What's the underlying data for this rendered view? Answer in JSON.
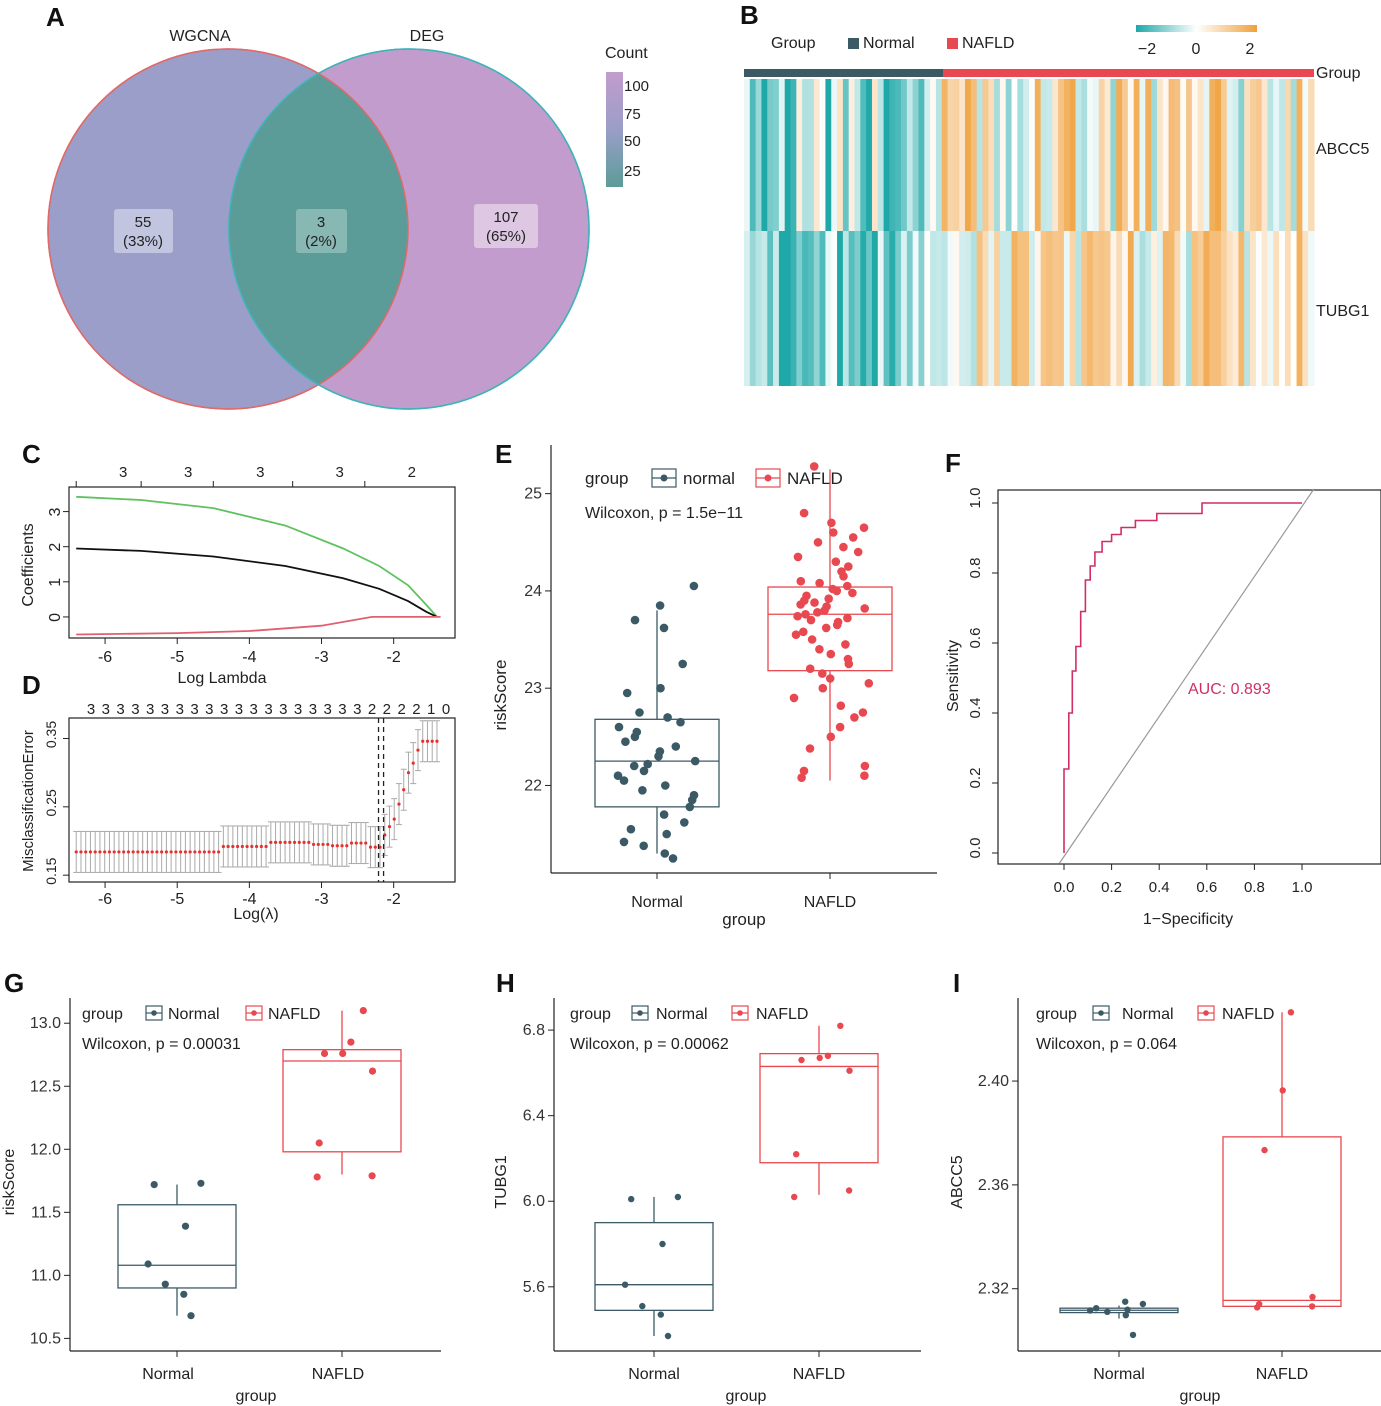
{
  "figure": {
    "panel_letters": [
      "A",
      "B",
      "C",
      "D",
      "E",
      "F",
      "G",
      "H",
      "I"
    ],
    "colors": {
      "normal": "#3b5a66",
      "nafld": "#e8484f",
      "heat_low": "#1fa8a8",
      "heat_mid": "#ffffff",
      "heat_high": "#f0a03c",
      "venn_left": "#9a9ec8",
      "venn_right": "#c29ccc",
      "venn_overlap": "#5c9c98"
    }
  },
  "chart_data": [
    {
      "panel": "A",
      "type": "venn",
      "sets": [
        "WGCNA",
        "DEG"
      ],
      "regions": [
        {
          "name": "WGCNA only",
          "count": "55",
          "pct": "(33%)"
        },
        {
          "name": "overlap",
          "count": "3",
          "pct": "(2%)"
        },
        {
          "name": "DEG only",
          "count": "107",
          "pct": "(65%)"
        }
      ],
      "legend_title": "Count",
      "legend_ticks": [
        "100",
        "75",
        "50",
        "25"
      ]
    },
    {
      "panel": "B",
      "type": "heatmap",
      "legend_title": "Group",
      "groups": [
        "Normal",
        "NAFLD"
      ],
      "annotation_label": "Group",
      "rows": [
        "ABCC5",
        "TUBG1"
      ],
      "scale_ticks": [
        "−2",
        "0",
        "2"
      ],
      "n_normal": 34,
      "n_nafld": 64
    },
    {
      "panel": "C",
      "type": "line",
      "xlabel": "Log Lambda",
      "ylabel": "Coefficients",
      "xticks": [
        "-6",
        "-5",
        "-4",
        "-3",
        "-2"
      ],
      "yticks": [
        "0",
        "1",
        "2",
        "3"
      ],
      "top_ticks": [
        "3",
        "3",
        "3",
        "3",
        "2"
      ],
      "xlim": [
        -6.5,
        -1.15
      ],
      "ylim": [
        -0.6,
        3.7
      ],
      "series": [
        {
          "name": "green",
          "color": "#5fc25f",
          "x": [
            -6.4,
            -5.5,
            -4.5,
            -3.5,
            -2.7,
            -2.2,
            -1.8,
            -1.55,
            -1.4
          ],
          "y": [
            3.42,
            3.33,
            3.1,
            2.6,
            1.95,
            1.45,
            0.9,
            0.35,
            0
          ]
        },
        {
          "name": "black",
          "color": "#111111",
          "x": [
            -6.4,
            -5.5,
            -4.5,
            -3.5,
            -2.7,
            -2.2,
            -1.8,
            -1.55,
            -1.4
          ],
          "y": [
            1.95,
            1.88,
            1.72,
            1.45,
            1.1,
            0.8,
            0.45,
            0.15,
            0
          ]
        },
        {
          "name": "red",
          "color": "#e06070",
          "x": [
            -6.4,
            -5,
            -4,
            -3,
            -2.3,
            -1.5,
            -1.35
          ],
          "y": [
            -0.5,
            -0.46,
            -0.4,
            -0.25,
            0,
            0,
            0
          ]
        }
      ]
    },
    {
      "panel": "D",
      "type": "errorbar",
      "xlabel": "Log(λ)",
      "ylabel": "MisclassificationError",
      "xticks": [
        "-6",
        "-5",
        "-4",
        "-3",
        "-2"
      ],
      "yticks": [
        "0.15",
        "0.25",
        "0.35"
      ],
      "top_ticks": [
        "3",
        "3",
        "3",
        "3",
        "3",
        "3",
        "3",
        "3",
        "3",
        "3",
        "3",
        "3",
        "3",
        "3",
        "3",
        "3",
        "3",
        "3",
        "3",
        "2",
        "2",
        "2",
        "2",
        "1",
        "0"
      ],
      "xlim": [
        -6.5,
        -1.15
      ],
      "ylim": [
        0.14,
        0.38
      ],
      "vlines": [
        -2.21,
        -2.14
      ],
      "means": [
        0.184,
        0.184,
        0.184,
        0.184,
        0.184,
        0.184,
        0.184,
        0.184,
        0.184,
        0.184,
        0.184,
        0.184,
        0.184,
        0.184,
        0.184,
        0.184,
        0.184,
        0.184,
        0.184,
        0.184,
        0.184,
        0.184,
        0.184,
        0.184,
        0.184,
        0.184,
        0.184,
        0.184,
        0.184,
        0.184,
        0.184,
        0.192,
        0.192,
        0.192,
        0.192,
        0.192,
        0.192,
        0.192,
        0.192,
        0.192,
        0.192,
        0.198,
        0.198,
        0.198,
        0.198,
        0.198,
        0.198,
        0.198,
        0.198,
        0.198,
        0.195,
        0.195,
        0.195,
        0.195,
        0.193,
        0.193,
        0.193,
        0.193,
        0.197,
        0.197,
        0.197,
        0.197,
        0.191,
        0.191,
        0.191,
        0.209,
        0.221,
        0.232,
        0.254,
        0.275,
        0.3,
        0.314,
        0.333,
        0.346,
        0.346,
        0.346,
        0.346
      ],
      "err": 0.03
    },
    {
      "panel": "E",
      "type": "boxplot",
      "legend_title": "group",
      "legend": [
        "normal",
        "NAFLD"
      ],
      "stat": "Wilcoxon, p = 1.5e−11",
      "xlabel": "group",
      "ylabel": "riskScore",
      "categories": [
        "Normal",
        "NAFLD"
      ],
      "yticks": [
        "22",
        "23",
        "24",
        "25"
      ],
      "ylim": [
        21.1,
        25.5
      ],
      "boxes": [
        {
          "min": 21.3,
          "q1": 21.78,
          "median": 22.25,
          "q3": 22.68,
          "max": 23.8
        },
        {
          "min": 22.05,
          "q1": 23.18,
          "median": 23.76,
          "q3": 24.04,
          "max": 25.25
        }
      ],
      "points": [
        [
          21.25,
          21.3,
          21.38,
          21.42,
          21.5,
          21.55,
          21.62,
          21.7,
          21.78,
          21.85,
          21.9,
          21.95,
          22.0,
          22.05,
          22.1,
          22.15,
          22.2,
          22.22,
          22.25,
          22.3,
          22.35,
          22.4,
          22.45,
          22.5,
          22.55,
          22.6,
          22.65,
          22.7,
          22.75,
          22.95,
          23.0,
          23.25,
          23.62,
          23.7,
          23.85,
          24.05
        ],
        [
          22.08,
          22.1,
          22.15,
          22.2,
          22.38,
          22.5,
          22.6,
          22.7,
          22.75,
          22.82,
          22.9,
          23.0,
          23.05,
          23.1,
          23.15,
          23.2,
          23.25,
          23.3,
          23.35,
          23.4,
          23.45,
          23.5,
          23.55,
          23.58,
          23.62,
          23.65,
          23.68,
          23.7,
          23.72,
          23.74,
          23.76,
          23.78,
          23.8,
          23.82,
          23.84,
          23.86,
          23.88,
          23.9,
          23.92,
          23.95,
          23.98,
          24.0,
          24.02,
          24.05,
          24.08,
          24.1,
          24.15,
          24.2,
          24.25,
          24.3,
          24.35,
          24.4,
          24.45,
          24.5,
          24.55,
          24.6,
          24.65,
          24.7,
          24.8,
          25.28
        ]
      ]
    },
    {
      "panel": "F",
      "type": "roc",
      "xlabel": "1−Specificity",
      "ylabel": "Sensitivity",
      "auc_label": "AUC: 0.893",
      "xticks": [
        "0.0",
        "0.2",
        "0.4",
        "0.6",
        "0.8",
        "1.0"
      ],
      "yticks": [
        "0.0",
        "0.2",
        "0.4",
        "0.6",
        "0.8",
        "1.0"
      ],
      "fpr": [
        0,
        0,
        0.02,
        0.02,
        0.035,
        0.035,
        0.05,
        0.05,
        0.07,
        0.07,
        0.09,
        0.09,
        0.11,
        0.11,
        0.13,
        0.13,
        0.16,
        0.16,
        0.2,
        0.2,
        0.24,
        0.24,
        0.3,
        0.3,
        0.39,
        0.39,
        0.58,
        0.58,
        1.0
      ],
      "tpr": [
        0,
        0.24,
        0.24,
        0.4,
        0.4,
        0.52,
        0.52,
        0.59,
        0.59,
        0.69,
        0.69,
        0.78,
        0.78,
        0.82,
        0.82,
        0.86,
        0.86,
        0.89,
        0.89,
        0.91,
        0.91,
        0.93,
        0.93,
        0.95,
        0.95,
        0.97,
        0.97,
        1.0,
        1.0
      ]
    },
    {
      "panel": "G",
      "type": "boxplot",
      "legend_title": "group",
      "legend": [
        "Normal",
        "NAFLD"
      ],
      "stat": "Wilcoxon, p = 0.00031",
      "xlabel": "group",
      "ylabel": "riskScore",
      "categories": [
        "Normal",
        "NAFLD"
      ],
      "yticks": [
        "10.5",
        "11.0",
        "11.5",
        "12.0",
        "12.5",
        "13.0"
      ],
      "ylim": [
        10.4,
        13.2
      ],
      "boxes": [
        {
          "min": 10.68,
          "q1": 10.9,
          "median": 11.08,
          "q3": 11.56,
          "max": 11.72
        },
        {
          "min": 11.8,
          "q1": 11.98,
          "median": 12.7,
          "q3": 12.79,
          "max": 13.1
        }
      ],
      "points": [
        [
          10.68,
          10.85,
          10.93,
          11.09,
          11.39,
          11.72,
          11.73
        ],
        [
          11.78,
          11.79,
          12.05,
          12.62,
          12.76,
          12.76,
          12.85,
          13.1
        ]
      ]
    },
    {
      "panel": "H",
      "type": "boxplot",
      "legend_title": "group",
      "legend": [
        "Normal",
        "NAFLD"
      ],
      "stat": "Wilcoxon, p = 0.00062",
      "xlabel": "group",
      "ylabel": "TUBG1",
      "categories": [
        "Normal",
        "NAFLD"
      ],
      "yticks": [
        "5.6",
        "6.0",
        "6.4",
        "6.8"
      ],
      "ylim": [
        5.3,
        6.95
      ],
      "boxes": [
        {
          "min": 5.37,
          "q1": 5.49,
          "median": 5.61,
          "q3": 5.9,
          "max": 6.02
        },
        {
          "min": 6.03,
          "q1": 6.18,
          "median": 6.63,
          "q3": 6.69,
          "max": 6.82
        }
      ],
      "points": [
        [
          5.37,
          5.47,
          5.51,
          5.61,
          5.8,
          6.01,
          6.02
        ],
        [
          6.02,
          6.05,
          6.22,
          6.61,
          6.66,
          6.67,
          6.68,
          6.82
        ]
      ]
    },
    {
      "panel": "I",
      "type": "boxplot",
      "legend_title": "group",
      "legend": [
        "Normal",
        "NAFLD"
      ],
      "stat": "Wilcoxon, p = 0.064",
      "xlabel": "group",
      "ylabel": "ABCC5",
      "categories": [
        "Normal",
        "NAFLD"
      ],
      "yticks": [
        "2.32",
        "2.36",
        "2.40"
      ],
      "ylim": [
        2.296,
        2.432
      ],
      "boxes": [
        {
          "min": 2.3085,
          "q1": 2.3108,
          "median": 2.3117,
          "q3": 2.3125,
          "max": 2.3135
        },
        {
          "min": 2.313,
          "q1": 2.3132,
          "median": 2.3155,
          "q3": 2.3785,
          "max": 2.4265
        }
      ],
      "points": [
        [
          2.3022,
          2.3098,
          2.3111,
          2.3116,
          2.3119,
          2.3125,
          2.3141,
          2.315
        ],
        [
          2.3128,
          2.3132,
          2.3141,
          2.3168,
          2.3734,
          2.3964,
          2.4265
        ]
      ]
    }
  ]
}
